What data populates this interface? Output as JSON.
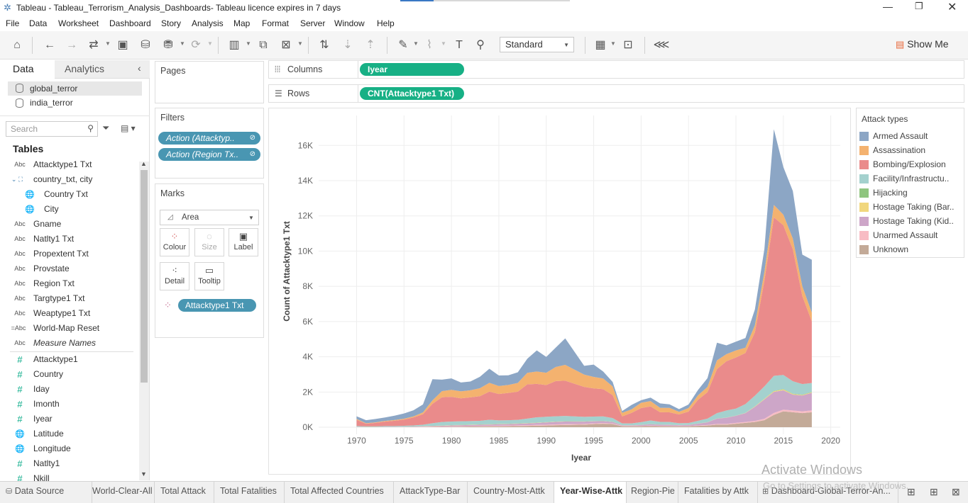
{
  "window": {
    "title": "Tableau - Tableau_Terrorism_Analysis_Dashboards- Tableau licence expires in 7 days",
    "controls": [
      "minimize",
      "restore",
      "close"
    ]
  },
  "menu": [
    "File",
    "Data",
    "Worksheet",
    "Dashboard",
    "Story",
    "Analysis",
    "Map",
    "Format",
    "Server",
    "Window",
    "Help"
  ],
  "toolbar": {
    "fit_select": "Standard",
    "show_me": "Show Me"
  },
  "left_panel": {
    "tabs": [
      "Data",
      "Analytics"
    ],
    "data_sources": [
      "global_terror",
      "india_terror"
    ],
    "search_placeholder": "Search",
    "tables_heading": "Tables",
    "fields": [
      {
        "type": "Abc",
        "name": "Attacktype1 Txt"
      },
      {
        "type": "hier",
        "name": "country_txt, city"
      },
      {
        "type": "geo",
        "name": "Country Txt"
      },
      {
        "type": "geo",
        "name": "City"
      },
      {
        "type": "Abc",
        "name": "Gname"
      },
      {
        "type": "Abc",
        "name": "Natlty1 Txt"
      },
      {
        "type": "Abc",
        "name": "Propextent Txt"
      },
      {
        "type": "Abc",
        "name": "Provstate"
      },
      {
        "type": "Abc",
        "name": "Region Txt"
      },
      {
        "type": "Abc",
        "name": "Targtype1 Txt"
      },
      {
        "type": "Abc",
        "name": "Weaptype1 Txt"
      },
      {
        "type": "=Abc",
        "name": "World-Map Reset"
      },
      {
        "type": "Abc",
        "name": "Measure Names"
      },
      {
        "type": "#",
        "name": "Attacktype1"
      },
      {
        "type": "#",
        "name": "Country"
      },
      {
        "type": "#",
        "name": "Iday"
      },
      {
        "type": "#",
        "name": "Imonth"
      },
      {
        "type": "#",
        "name": "Iyear"
      },
      {
        "type": "geo",
        "name": "Latitude"
      },
      {
        "type": "geo",
        "name": "Longitude"
      },
      {
        "type": "#",
        "name": "Natlty1"
      },
      {
        "type": "#",
        "name": "Nkill"
      }
    ]
  },
  "cards": {
    "pages": "Pages",
    "filters": "Filters",
    "filter_pills": [
      "Action (Attacktyp..",
      "Action (Region Tx.."
    ],
    "marks": "Marks",
    "mark_type": "Area",
    "mark_buttons": [
      "Colour",
      "Size",
      "Label",
      "Detail",
      "Tooltip"
    ],
    "mark_pill": "Attacktype1 Txt"
  },
  "shelves": {
    "columns_label": "Columns",
    "columns_pill": "Iyear",
    "rows_label": "Rows",
    "rows_pill": "CNT(Attacktype1 Txt)"
  },
  "legend": {
    "title": "Attack types",
    "items": [
      {
        "label": "Armed Assault",
        "color": "#8ca6c5"
      },
      {
        "label": "Assassination",
        "color": "#f4b26f"
      },
      {
        "label": "Bombing/Explosion",
        "color": "#ea8b8b"
      },
      {
        "label": "Facility/Infrastructu..",
        "color": "#a4d1ce"
      },
      {
        "label": "Hijacking",
        "color": "#8fc57f"
      },
      {
        "label": "Hostage Taking (Bar..",
        "color": "#f1d77d"
      },
      {
        "label": "Hostage Taking (Kid..",
        "color": "#cda6c8"
      },
      {
        "label": "Unarmed Assault",
        "color": "#f8bcc4"
      },
      {
        "label": "Unknown",
        "color": "#c3aa98"
      }
    ]
  },
  "chart_data": {
    "type": "area",
    "stacked": true,
    "xlabel": "Iyear",
    "ylabel": "Count of Attacktype1 Txt",
    "xlim": [
      1966,
      2021
    ],
    "ylim": [
      -400,
      17700
    ],
    "x_ticks": [
      1970,
      1975,
      1980,
      1985,
      1990,
      1995,
      2000,
      2005,
      2010,
      2015,
      2020
    ],
    "y_ticks": [
      {
        "v": 0,
        "label": "0K"
      },
      {
        "v": 2000,
        "label": "2K"
      },
      {
        "v": 4000,
        "label": "4K"
      },
      {
        "v": 6000,
        "label": "6K"
      },
      {
        "v": 8000,
        "label": "8K"
      },
      {
        "v": 10000,
        "label": "10K"
      },
      {
        "v": 12000,
        "label": "12K"
      },
      {
        "v": 14000,
        "label": "14K"
      },
      {
        "v": 16000,
        "label": "16K"
      }
    ],
    "grid": true,
    "x": [
      1970,
      1971,
      1972,
      1973,
      1974,
      1975,
      1976,
      1977,
      1978,
      1979,
      1980,
      1981,
      1982,
      1983,
      1984,
      1985,
      1986,
      1987,
      1988,
      1989,
      1990,
      1991,
      1992,
      1994,
      1995,
      1996,
      1997,
      1998,
      1999,
      2000,
      2001,
      2002,
      2003,
      2004,
      2005,
      2006,
      2007,
      2008,
      2009,
      2010,
      2011,
      2012,
      2013,
      2014,
      2015,
      2016,
      2017,
      2018
    ],
    "series": [
      {
        "name": "Unknown",
        "values": [
          5,
          3,
          3,
          5,
          5,
          6,
          10,
          12,
          15,
          20,
          25,
          30,
          40,
          40,
          50,
          50,
          60,
          70,
          80,
          90,
          100,
          120,
          130,
          150,
          180,
          200,
          180,
          60,
          50,
          60,
          70,
          60,
          60,
          50,
          50,
          80,
          100,
          150,
          150,
          200,
          250,
          300,
          400,
          700,
          900,
          850,
          800,
          850
        ]
      },
      {
        "name": "Unarmed Assault",
        "values": [
          10,
          5,
          5,
          5,
          5,
          10,
          10,
          20,
          20,
          25,
          30,
          30,
          30,
          35,
          35,
          40,
          40,
          40,
          40,
          45,
          45,
          45,
          45,
          40,
          40,
          40,
          35,
          20,
          20,
          20,
          25,
          25,
          20,
          20,
          20,
          25,
          30,
          40,
          40,
          50,
          50,
          60,
          80,
          110,
          100,
          100,
          100,
          110
        ]
      },
      {
        "name": "Hostage Taking (Kid..",
        "values": [
          10,
          5,
          5,
          10,
          10,
          10,
          15,
          20,
          30,
          40,
          50,
          60,
          60,
          70,
          70,
          80,
          80,
          90,
          100,
          110,
          130,
          140,
          150,
          130,
          120,
          110,
          90,
          30,
          40,
          50,
          80,
          60,
          60,
          50,
          60,
          100,
          150,
          300,
          350,
          400,
          500,
          800,
          1100,
          1200,
          1100,
          900,
          900,
          1000
        ]
      },
      {
        "name": "Hostage Taking (Bar..",
        "values": [
          2,
          2,
          2,
          2,
          2,
          3,
          4,
          5,
          8,
          10,
          10,
          10,
          8,
          8,
          8,
          8,
          8,
          8,
          8,
          8,
          8,
          8,
          8,
          8,
          6,
          6,
          5,
          3,
          3,
          3,
          3,
          3,
          3,
          3,
          3,
          3,
          3,
          5,
          5,
          5,
          10,
          20,
          30,
          40,
          50,
          40,
          30,
          30
        ]
      },
      {
        "name": "Hijacking",
        "values": [
          5,
          5,
          5,
          5,
          5,
          5,
          5,
          5,
          5,
          5,
          10,
          10,
          10,
          10,
          10,
          10,
          10,
          10,
          10,
          10,
          10,
          10,
          10,
          10,
          10,
          10,
          10,
          5,
          5,
          5,
          5,
          5,
          5,
          5,
          5,
          5,
          5,
          5,
          5,
          5,
          5,
          10,
          10,
          20,
          20,
          20,
          20,
          20
        ]
      },
      {
        "name": "Facility/Infrastructu..",
        "values": [
          40,
          30,
          30,
          40,
          40,
          50,
          60,
          80,
          150,
          200,
          200,
          200,
          200,
          200,
          250,
          200,
          200,
          200,
          250,
          300,
          300,
          300,
          300,
          250,
          250,
          250,
          200,
          100,
          100,
          150,
          200,
          150,
          150,
          100,
          100,
          150,
          200,
          300,
          400,
          400,
          500,
          600,
          700,
          850,
          800,
          700,
          600,
          500
        ]
      },
      {
        "name": "Bombing/Explosion",
        "values": [
          350,
          150,
          200,
          250,
          300,
          350,
          450,
          600,
          1100,
          1400,
          1400,
          1300,
          1350,
          1400,
          1600,
          1500,
          1550,
          1600,
          1950,
          1900,
          1800,
          2000,
          2000,
          1700,
          1600,
          1550,
          1300,
          400,
          600,
          800,
          800,
          550,
          550,
          500,
          650,
          1200,
          1500,
          2500,
          2800,
          2900,
          2900,
          3600,
          6000,
          9000,
          8500,
          7500,
          5000,
          3500
        ]
      },
      {
        "name": "Assassination",
        "values": [
          50,
          30,
          30,
          40,
          40,
          50,
          60,
          100,
          200,
          350,
          400,
          400,
          400,
          450,
          500,
          450,
          450,
          500,
          650,
          700,
          700,
          800,
          900,
          700,
          650,
          600,
          500,
          200,
          200,
          300,
          300,
          250,
          250,
          150,
          200,
          250,
          300,
          500,
          400,
          400,
          300,
          400,
          500,
          700,
          600,
          600,
          550,
          500
        ]
      },
      {
        "name": "Armed Assault",
        "values": [
          150,
          170,
          190,
          200,
          250,
          300,
          350,
          450,
          1200,
          650,
          650,
          500,
          500,
          650,
          800,
          600,
          550,
          600,
          800,
          1200,
          900,
          1100,
          1500,
          500,
          700,
          400,
          250,
          100,
          250,
          150,
          200,
          250,
          200,
          150,
          200,
          300,
          500,
          1000,
          500,
          500,
          550,
          900,
          1300,
          4300,
          2700,
          2700,
          1800,
          3000
        ]
      }
    ]
  },
  "bottom_tabs": [
    "Data Source",
    "World-Clear-All",
    "Total Attack",
    "Total Fatalities",
    "Total Affected Countries",
    "AttackType-Bar",
    "Country-Most-Attk",
    "Year-Wise-Attk",
    "Region-Pie",
    "Fatalities by Attk",
    "Dashboard-Global-Terror-An..."
  ],
  "active_tab": "Year-Wise-Attk",
  "watermark": {
    "line1": "Activate Windows",
    "line2": "Go to Settings to activate Windows."
  }
}
